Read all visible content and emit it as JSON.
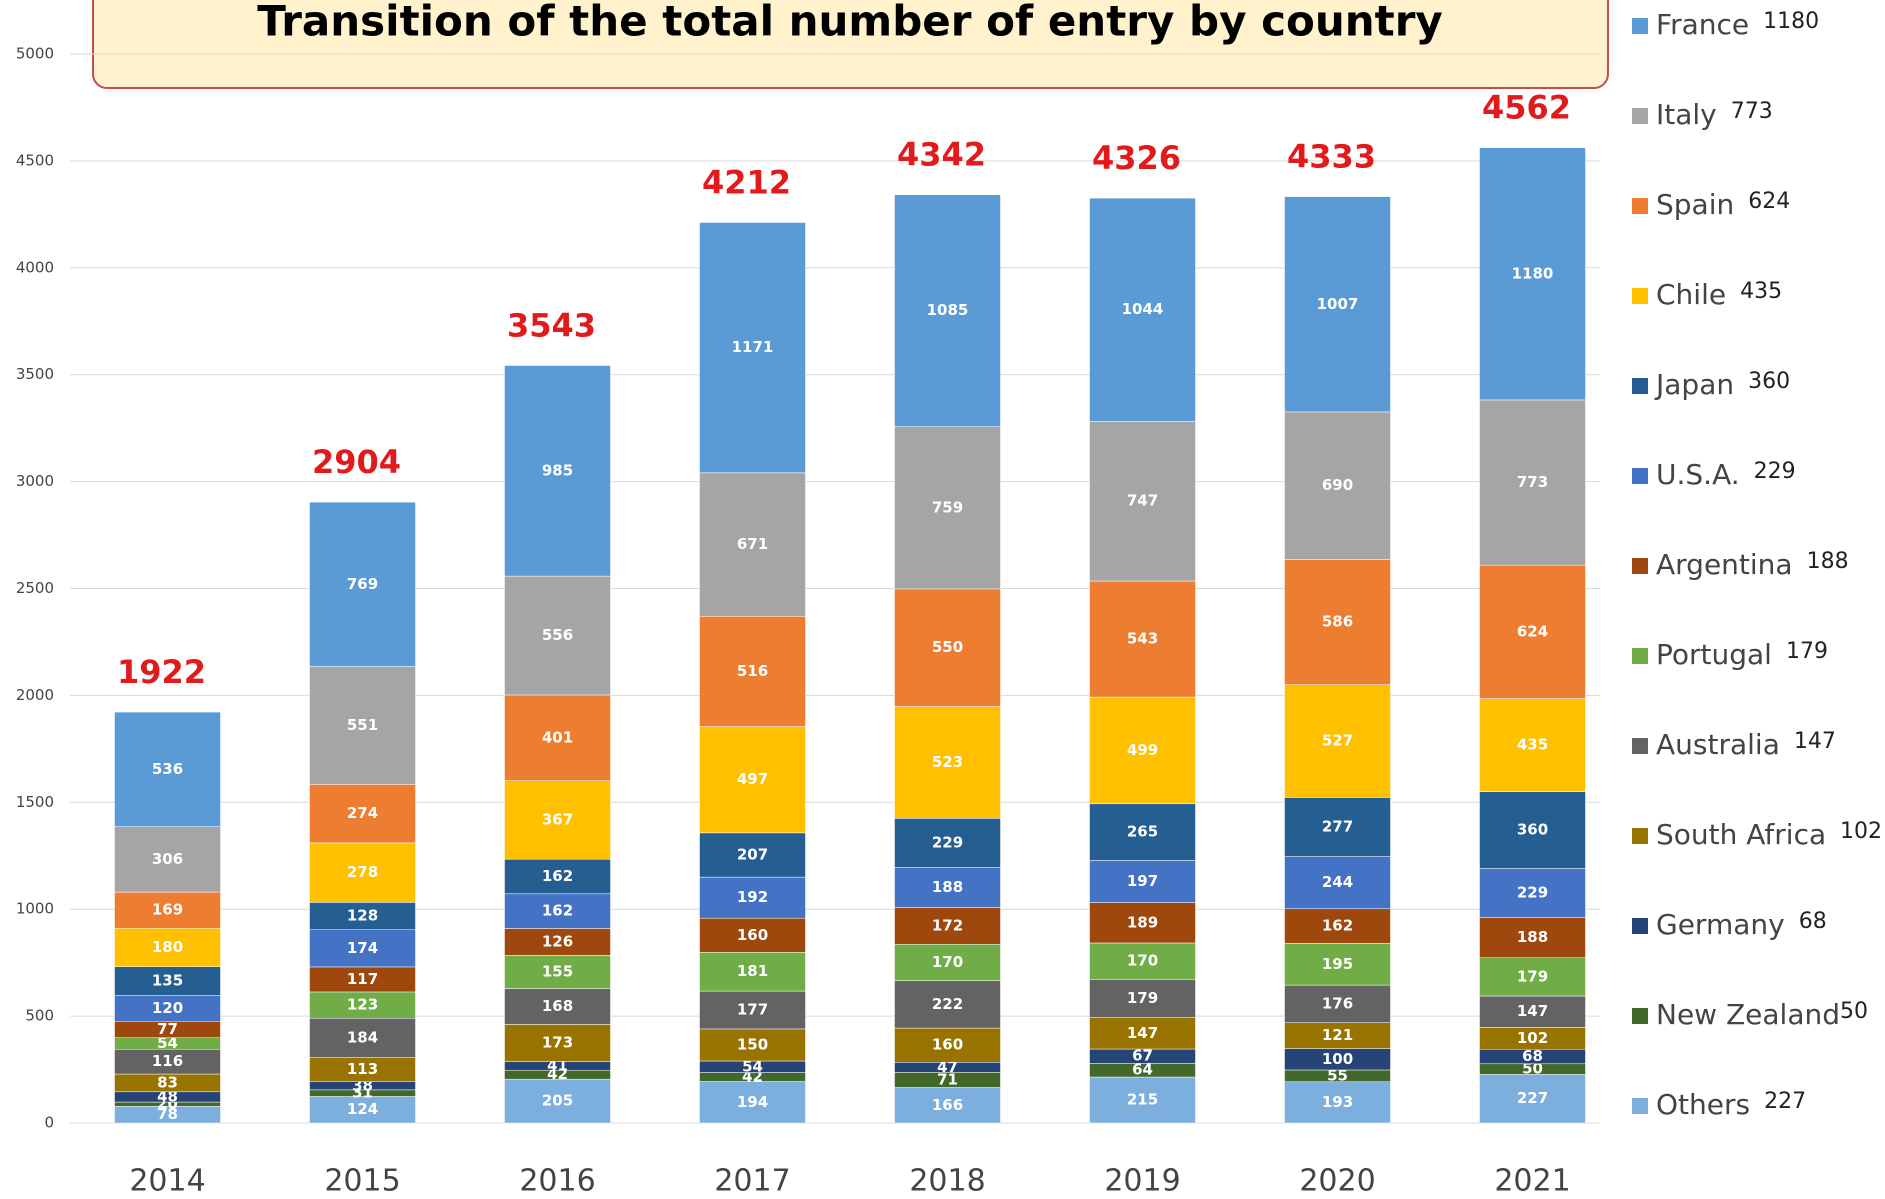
{
  "chart_data": {
    "type": "stacked_bar",
    "title": "Transition of the total number of entry by country",
    "categories": [
      "2014",
      "2015",
      "2016",
      "2017",
      "2018",
      "2019",
      "2020",
      "2021"
    ],
    "totals": [
      1922,
      2904,
      3543,
      4212,
      4342,
      4326,
      4333,
      4562
    ],
    "series": [
      {
        "name": "France",
        "color": "#5b9bd5",
        "values": [
          536,
          769,
          985,
          1171,
          1085,
          1044,
          1007,
          1180
        ]
      },
      {
        "name": "Italy",
        "color": "#a5a5a5",
        "values": [
          306,
          551,
          556,
          671,
          759,
          747,
          690,
          773
        ]
      },
      {
        "name": "Spain",
        "color": "#ed7d31",
        "values": [
          169,
          274,
          401,
          516,
          550,
          543,
          586,
          624
        ]
      },
      {
        "name": "Chile",
        "color": "#ffc000",
        "values": [
          180,
          278,
          367,
          497,
          523,
          499,
          527,
          435
        ]
      },
      {
        "name": "Japan",
        "color": "#255e91",
        "values": [
          135,
          128,
          162,
          207,
          229,
          265,
          277,
          360
        ]
      },
      {
        "name": "U.S.A.",
        "color": "#4472c4",
        "values": [
          120,
          174,
          162,
          192,
          188,
          197,
          244,
          229
        ]
      },
      {
        "name": "Argentina",
        "color": "#9e480e",
        "values": [
          77,
          117,
          126,
          160,
          172,
          189,
          162,
          188
        ]
      },
      {
        "name": "Portugal",
        "color": "#70ad47",
        "values": [
          54,
          123,
          155,
          181,
          170,
          170,
          195,
          179
        ]
      },
      {
        "name": "Australia",
        "color": "#636363",
        "values": [
          116,
          184,
          168,
          177,
          222,
          179,
          176,
          147
        ]
      },
      {
        "name": "South Africa",
        "color": "#997300",
        "values": [
          83,
          113,
          173,
          150,
          160,
          147,
          121,
          102
        ]
      },
      {
        "name": "Germany",
        "color": "#264478",
        "values": [
          48,
          38,
          41,
          54,
          47,
          67,
          100,
          68
        ]
      },
      {
        "name": "New Zealand",
        "color": "#43682b",
        "values": [
          20,
          31,
          42,
          42,
          71,
          64,
          55,
          50
        ]
      },
      {
        "name": "Others",
        "color": "#7cafdd",
        "values": [
          78,
          124,
          205,
          194,
          166,
          215,
          193,
          227
        ]
      }
    ],
    "ylim": [
      0,
      5000
    ],
    "yticks": [
      0,
      500,
      1000,
      1500,
      2000,
      2500,
      3000,
      3500,
      4000,
      4500,
      5000
    ],
    "grid": true
  }
}
